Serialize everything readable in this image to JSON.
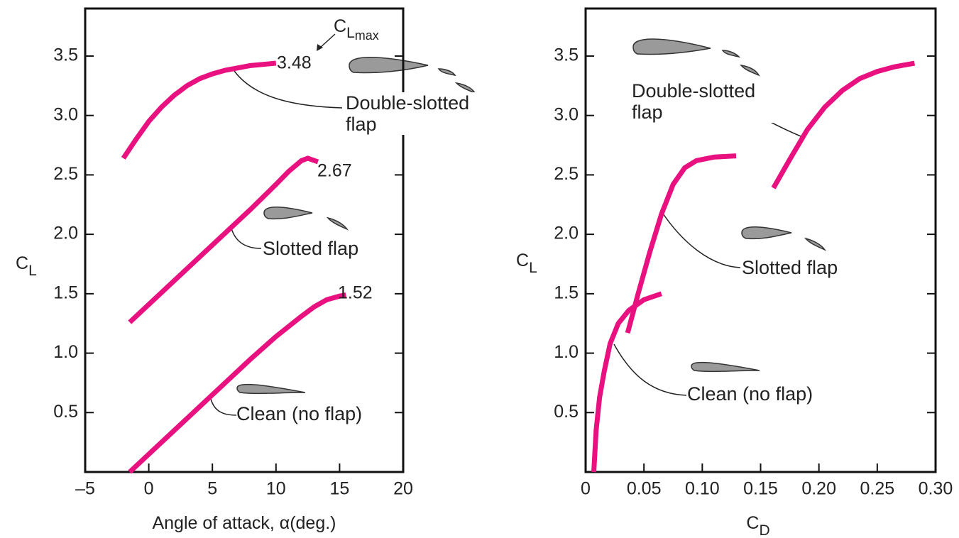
{
  "chart_data": [
    {
      "type": "line",
      "xlabel": "Angle of attack, α(deg.)",
      "ylabel": "C",
      "ylabel_sub": "L",
      "xlim": [
        -5,
        20
      ],
      "ylim": [
        0,
        3.9
      ],
      "xticks": [
        {
          "value": -5,
          "label": "–5"
        },
        0,
        5,
        10,
        15,
        20
      ],
      "yticks": [
        0.5,
        {
          "value": 1,
          "label": "1.0"
        },
        1.5,
        {
          "value": 2,
          "label": "2.0"
        },
        2.5,
        {
          "value": 3,
          "label": "3.0"
        },
        3.5
      ],
      "cl_max": {
        "main": "C",
        "sub": "L",
        "subsub": "max"
      },
      "annotations": [
        "3.48",
        "2.67",
        "1.52"
      ],
      "series": [
        {
          "name": "Double-slotted flap",
          "color": "#e8117f",
          "x": [
            -2,
            -1,
            0,
            1,
            2,
            3,
            4,
            5,
            6,
            7,
            8,
            9,
            10
          ],
          "values": [
            2.64,
            2.8,
            2.95,
            3.07,
            3.17,
            3.25,
            3.31,
            3.35,
            3.38,
            3.4,
            3.42,
            3.43,
            3.44
          ]
        },
        {
          "name": "Slotted flap",
          "color": "#e8117f",
          "x": [
            -1.5,
            0,
            2,
            4,
            6,
            8,
            10,
            11,
            12,
            12.5,
            13.3
          ],
          "values": [
            1.26,
            1.41,
            1.61,
            1.81,
            2.01,
            2.21,
            2.42,
            2.53,
            2.62,
            2.64,
            2.61
          ]
        },
        {
          "name": "Clean (no flap)",
          "color": "#e8117f",
          "x": [
            -1.5,
            0,
            2,
            4,
            6,
            8,
            10,
            12,
            13,
            14,
            15,
            15.5
          ],
          "values": [
            0,
            0.15,
            0.35,
            0.55,
            0.75,
            0.95,
            1.14,
            1.31,
            1.39,
            1.45,
            1.48,
            1.49
          ]
        }
      ]
    },
    {
      "type": "line",
      "xlabel": "C",
      "xlabel_sub": "D",
      "ylabel": "C",
      "ylabel_sub": "L",
      "xlim": [
        0,
        0.3
      ],
      "ylim": [
        0,
        3.9
      ],
      "xticks": [
        0,
        0.05,
        {
          "value": 0.1,
          "label": "0.10"
        },
        0.15,
        {
          "value": 0.2,
          "label": "0.20"
        },
        0.25,
        {
          "value": 0.3,
          "label": "0.30"
        }
      ],
      "yticks": [
        0.5,
        {
          "value": 1,
          "label": "1.0"
        },
        1.5,
        {
          "value": 2,
          "label": "2.0"
        },
        2.5,
        {
          "value": 3,
          "label": "3.0"
        },
        3.5
      ],
      "series": [
        {
          "name": "Double-slotted flap",
          "color": "#e8117f",
          "x": [
            0.161,
            0.175,
            0.19,
            0.205,
            0.22,
            0.235,
            0.25,
            0.265,
            0.282
          ],
          "values": [
            2.39,
            2.63,
            2.88,
            3.07,
            3.21,
            3.31,
            3.37,
            3.41,
            3.44
          ]
        },
        {
          "name": "Slotted flap",
          "color": "#e8117f",
          "x": [
            0.036,
            0.045,
            0.055,
            0.065,
            0.075,
            0.085,
            0.095,
            0.11,
            0.129
          ],
          "values": [
            1.17,
            1.5,
            1.85,
            2.17,
            2.42,
            2.56,
            2.62,
            2.65,
            2.66
          ]
        },
        {
          "name": "Clean (no flap)",
          "color": "#e8117f",
          "x": [
            0.007,
            0.009,
            0.012,
            0.016,
            0.021,
            0.028,
            0.037,
            0.05,
            0.065
          ],
          "values": [
            0,
            0.35,
            0.63,
            0.85,
            1.08,
            1.25,
            1.36,
            1.45,
            1.5
          ]
        }
      ]
    }
  ]
}
